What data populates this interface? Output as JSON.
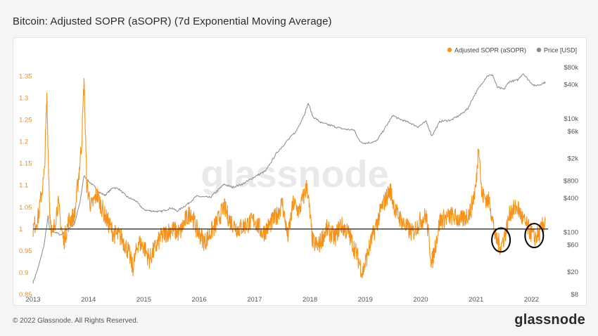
{
  "title": "Bitcoin: Adjusted SOPR (aSOPR) (7d Exponential Moving Average)",
  "footer": {
    "copyright": "© 2022 Glassnode. All Rights Reserved.",
    "logo": "glassnode"
  },
  "watermark": "glassnode",
  "colors": {
    "asopr": "#f7931a",
    "price": "#8a8a8a",
    "baseline": "#333333",
    "left_axis_text": "#e8911f",
    "right_axis_text": "#555555",
    "annotation": "#000000"
  },
  "chart_data": {
    "type": "line",
    "title": "Bitcoin: Adjusted SOPR (aSOPR) (7d Exponential Moving Average)",
    "legend": {
      "position": "top-right",
      "entries": [
        "Adjusted SOPR (aSOPR)",
        "Price [USD]"
      ]
    },
    "x_ticks": [
      "2013",
      "2014",
      "2015",
      "2016",
      "2017",
      "2018",
      "2019",
      "2020",
      "2021",
      "2022"
    ],
    "x_range": [
      2013.0,
      2022.3
    ],
    "y_left": {
      "label": "",
      "range": [
        0.85,
        1.37
      ],
      "ticks": [
        {
          "value": 0.85,
          "label": "0.85"
        },
        {
          "value": 0.9,
          "label": "0.9"
        },
        {
          "value": 0.95,
          "label": "0.95"
        },
        {
          "value": 1.0,
          "label": "1"
        },
        {
          "value": 1.05,
          "label": "1.05"
        },
        {
          "value": 1.1,
          "label": "1.1"
        },
        {
          "value": 1.15,
          "label": "1.15"
        },
        {
          "value": 1.2,
          "label": "1.2"
        },
        {
          "value": 1.25,
          "label": "1.25"
        },
        {
          "value": 1.3,
          "label": "1.3"
        },
        {
          "value": 1.35,
          "label": "1.35"
        }
      ]
    },
    "y_right": {
      "label": "",
      "scale": "log",
      "range": [
        8,
        80000
      ],
      "ticks": [
        {
          "value": 8,
          "label": "$8"
        },
        {
          "value": 20,
          "label": "$20"
        },
        {
          "value": 60,
          "label": "$60"
        },
        {
          "value": 100,
          "label": "$100"
        },
        {
          "value": 400,
          "label": "$400"
        },
        {
          "value": 800,
          "label": "$800"
        },
        {
          "value": 2000,
          "label": "$2k"
        },
        {
          "value": 6000,
          "label": "$6k"
        },
        {
          "value": 10000,
          "label": "$10k"
        },
        {
          "value": 40000,
          "label": "$40k"
        },
        {
          "value": 80000,
          "label": "$80k"
        }
      ]
    },
    "baseline": 1.0,
    "series": [
      {
        "name": "Adjusted SOPR (aSOPR)",
        "axis": "left",
        "points": [
          [
            2013.0,
            1.0
          ],
          [
            2013.1,
            1.03
          ],
          [
            2013.15,
            1.08
          ],
          [
            2013.2,
            1.12
          ],
          [
            2013.25,
            1.3
          ],
          [
            2013.3,
            1.04
          ],
          [
            2013.35,
            0.98
          ],
          [
            2013.45,
            1.06
          ],
          [
            2013.55,
            0.97
          ],
          [
            2013.65,
            1.02
          ],
          [
            2013.75,
            1.03
          ],
          [
            2013.83,
            1.13
          ],
          [
            2013.88,
            1.2
          ],
          [
            2013.92,
            1.34
          ],
          [
            2013.97,
            1.1
          ],
          [
            2014.05,
            1.05
          ],
          [
            2014.15,
            1.08
          ],
          [
            2014.3,
            1.03
          ],
          [
            2014.45,
            0.99
          ],
          [
            2014.6,
            0.98
          ],
          [
            2014.72,
            0.95
          ],
          [
            2014.8,
            0.91
          ],
          [
            2014.9,
            0.97
          ],
          [
            2015.0,
            0.96
          ],
          [
            2015.1,
            0.93
          ],
          [
            2015.3,
            0.98
          ],
          [
            2015.5,
            1.0
          ],
          [
            2015.65,
            0.99
          ],
          [
            2015.75,
            1.02
          ],
          [
            2015.85,
            1.04
          ],
          [
            2015.95,
            1.0
          ],
          [
            2016.1,
            0.97
          ],
          [
            2016.3,
            1.01
          ],
          [
            2016.45,
            1.05
          ],
          [
            2016.55,
            1.02
          ],
          [
            2016.7,
            1.0
          ],
          [
            2016.85,
            1.01
          ],
          [
            2017.0,
            1.02
          ],
          [
            2017.15,
            0.99
          ],
          [
            2017.4,
            1.03
          ],
          [
            2017.5,
            1.06
          ],
          [
            2017.6,
            0.98
          ],
          [
            2017.7,
            1.06
          ],
          [
            2017.8,
            1.04
          ],
          [
            2017.95,
            1.1
          ],
          [
            2018.0,
            1.03
          ],
          [
            2018.05,
            0.97
          ],
          [
            2018.15,
            0.96
          ],
          [
            2018.3,
            1.0
          ],
          [
            2018.45,
            0.98
          ],
          [
            2018.55,
            1.01
          ],
          [
            2018.7,
            0.99
          ],
          [
            2018.85,
            0.94
          ],
          [
            2018.95,
            0.9
          ],
          [
            2019.1,
            0.97
          ],
          [
            2019.3,
            1.05
          ],
          [
            2019.45,
            1.09
          ],
          [
            2019.55,
            1.04
          ],
          [
            2019.7,
            1.01
          ],
          [
            2019.85,
            0.99
          ],
          [
            2020.0,
            1.02
          ],
          [
            2020.1,
            1.03
          ],
          [
            2020.2,
            0.92
          ],
          [
            2020.35,
            1.02
          ],
          [
            2020.55,
            1.03
          ],
          [
            2020.75,
            1.02
          ],
          [
            2020.9,
            1.04
          ],
          [
            2021.0,
            1.1
          ],
          [
            2021.05,
            1.2
          ],
          [
            2021.1,
            1.08
          ],
          [
            2021.25,
            1.06
          ],
          [
            2021.35,
            0.98
          ],
          [
            2021.45,
            0.96
          ],
          [
            2021.55,
            1.0
          ],
          [
            2021.62,
            1.04
          ],
          [
            2021.75,
            1.05
          ],
          [
            2021.85,
            1.02
          ],
          [
            2021.95,
            1.0
          ],
          [
            2022.05,
            0.98
          ],
          [
            2022.15,
            0.99
          ],
          [
            2022.25,
            1.02
          ]
        ]
      },
      {
        "name": "Price [USD]",
        "axis": "right",
        "points": [
          [
            2013.0,
            13
          ],
          [
            2013.1,
            25
          ],
          [
            2013.2,
            60
          ],
          [
            2013.27,
            190
          ],
          [
            2013.3,
            110
          ],
          [
            2013.4,
            100
          ],
          [
            2013.5,
            90
          ],
          [
            2013.6,
            110
          ],
          [
            2013.75,
            140
          ],
          [
            2013.85,
            350
          ],
          [
            2013.92,
            1000
          ],
          [
            2014.0,
            800
          ],
          [
            2014.1,
            650
          ],
          [
            2014.2,
            500
          ],
          [
            2014.3,
            450
          ],
          [
            2014.45,
            620
          ],
          [
            2014.55,
            580
          ],
          [
            2014.7,
            420
          ],
          [
            2014.85,
            360
          ],
          [
            2015.0,
            250
          ],
          [
            2015.1,
            240
          ],
          [
            2015.3,
            230
          ],
          [
            2015.5,
            270
          ],
          [
            2015.6,
            235
          ],
          [
            2015.8,
            320
          ],
          [
            2015.95,
            430
          ],
          [
            2016.2,
            410
          ],
          [
            2016.45,
            700
          ],
          [
            2016.6,
            620
          ],
          [
            2016.8,
            720
          ],
          [
            2017.0,
            950
          ],
          [
            2017.2,
            1200
          ],
          [
            2017.4,
            2500
          ],
          [
            2017.6,
            4200
          ],
          [
            2017.75,
            6000
          ],
          [
            2017.9,
            12000
          ],
          [
            2017.97,
            19000
          ],
          [
            2018.05,
            11000
          ],
          [
            2018.2,
            8500
          ],
          [
            2018.4,
            7500
          ],
          [
            2018.6,
            6600
          ],
          [
            2018.8,
            6300
          ],
          [
            2018.9,
            4000
          ],
          [
            2019.0,
            3700
          ],
          [
            2019.2,
            4000
          ],
          [
            2019.4,
            8000
          ],
          [
            2019.5,
            11500
          ],
          [
            2019.6,
            10000
          ],
          [
            2019.8,
            8500
          ],
          [
            2019.95,
            7200
          ],
          [
            2020.1,
            9000
          ],
          [
            2020.2,
            5000
          ],
          [
            2020.35,
            9000
          ],
          [
            2020.55,
            9500
          ],
          [
            2020.7,
            11500
          ],
          [
            2020.85,
            15000
          ],
          [
            2020.95,
            24000
          ],
          [
            2021.05,
            35000
          ],
          [
            2021.2,
            57000
          ],
          [
            2021.3,
            59000
          ],
          [
            2021.38,
            36000
          ],
          [
            2021.5,
            33000
          ],
          [
            2021.6,
            45000
          ],
          [
            2021.75,
            48000
          ],
          [
            2021.85,
            63000
          ],
          [
            2021.95,
            48000
          ],
          [
            2022.05,
            38000
          ],
          [
            2022.15,
            40000
          ],
          [
            2022.25,
            44000
          ]
        ]
      }
    ],
    "annotations": [
      {
        "type": "ellipse",
        "x": 2021.45,
        "y": 0.975
      },
      {
        "type": "ellipse",
        "x": 2022.05,
        "y": 0.985
      }
    ]
  }
}
